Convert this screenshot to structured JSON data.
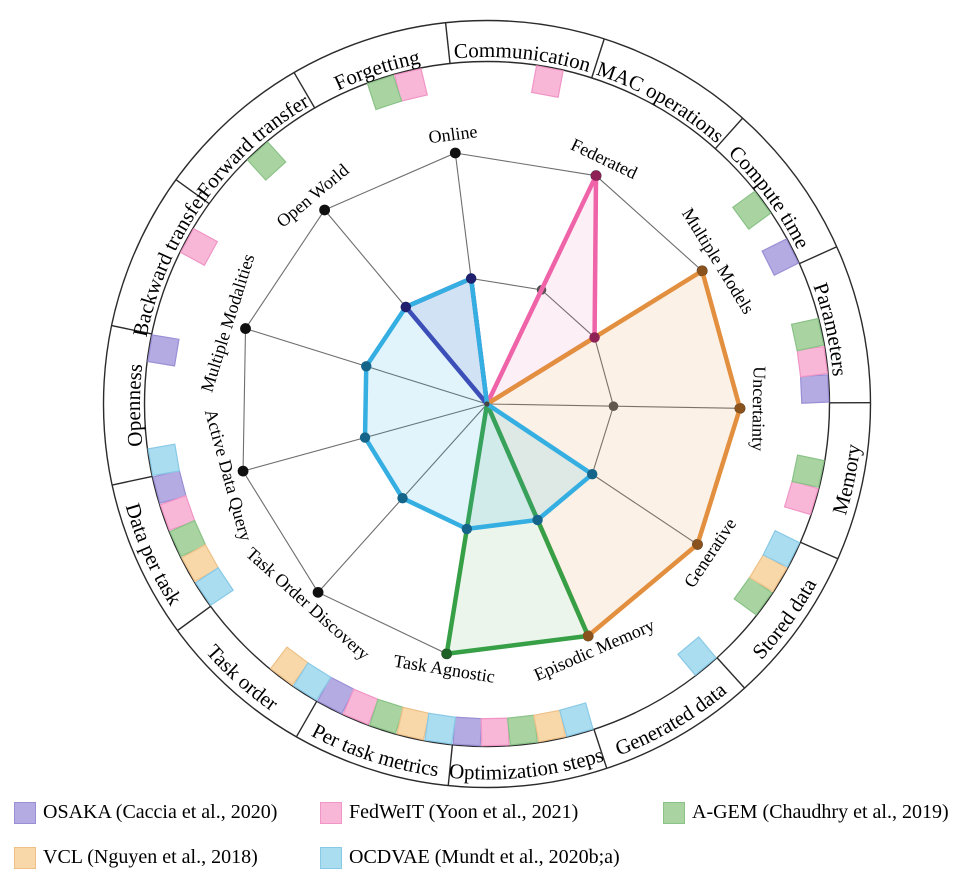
{
  "methods": {
    "OSAKA": {
      "line": "#3e3eb0",
      "dot": "#20206e",
      "square_fill": "#b4abe2",
      "square_stroke": "#998fd5",
      "fill_opacity": 0.1
    },
    "FedWeIT": {
      "line": "#ef63a8",
      "dot": "#8e2156",
      "square_fill": "#f9b7d8",
      "square_stroke": "#f095c5",
      "fill_opacity": 0.1
    },
    "A-GEM": {
      "line": "#37a046",
      "dot": "#1e6127",
      "square_fill": "#a9d4a2",
      "square_stroke": "#8ac287",
      "fill_opacity": 0.1
    },
    "VCL": {
      "line": "#e28f3f",
      "dot": "#8a521c",
      "square_fill": "#f8d8a9",
      "square_stroke": "#eec088",
      "fill_opacity": 0.13
    },
    "OCDVAE": {
      "line": "#35aee2",
      "dot": "#15658a",
      "square_fill": "#abddf1",
      "square_stroke": "#88c9e6",
      "fill_opacity": 0.14
    }
  },
  "chart_data": {
    "type": "radar",
    "title": "",
    "value_levels": [
      0,
      1,
      2
    ],
    "axes": [
      "Online",
      "Federated",
      "Multiple Models",
      "Uncertainty",
      "Generative",
      "Episodic Memory",
      "Task Agnostic",
      "Task Order Discovery",
      "Active Data Query",
      "Multiple Modalities",
      "Open World"
    ],
    "series": [
      {
        "name": "OSAKA",
        "values": [
          1,
          0,
          0,
          0,
          0,
          0,
          0,
          0,
          0,
          0,
          1
        ]
      },
      {
        "name": "FedWeIT",
        "values": [
          0,
          2,
          1,
          0,
          0,
          0,
          0,
          0,
          0,
          0,
          0
        ]
      },
      {
        "name": "VCL",
        "values": [
          0,
          0,
          2,
          2,
          2,
          2,
          0,
          0,
          0,
          0,
          0
        ]
      },
      {
        "name": "A-GEM",
        "values": [
          0,
          0,
          0,
          0,
          0,
          2,
          2,
          0,
          0,
          0,
          0
        ]
      },
      {
        "name": "OCDVAE",
        "values": [
          1,
          0,
          0,
          0,
          1,
          1,
          1,
          1,
          1,
          1,
          1
        ]
      }
    ],
    "outer_ring_sectors": [
      {
        "label": "Communication",
        "flipped": false,
        "marks": [
          "FedWeIT"
        ]
      },
      {
        "label": "MAC operations",
        "flipped": false,
        "marks": []
      },
      {
        "label": "Compute time",
        "flipped": false,
        "marks": [
          "OSAKA",
          "A-GEM"
        ]
      },
      {
        "label": "Parameters",
        "flipped": false,
        "marks": [
          "OSAKA",
          "FedWeIT",
          "A-GEM"
        ]
      },
      {
        "label": "Memory",
        "flipped": true,
        "marks": [
          "FedWeIT",
          "A-GEM"
        ]
      },
      {
        "label": "Stored data",
        "flipped": true,
        "marks": [
          "A-GEM",
          "VCL",
          "OCDVAE"
        ]
      },
      {
        "label": "Generated data",
        "flipped": true,
        "marks": [
          "OCDVAE"
        ]
      },
      {
        "label": "Optimization steps",
        "flipped": true,
        "marks": [
          "OSAKA",
          "FedWeIT",
          "A-GEM",
          "VCL",
          "OCDVAE"
        ]
      },
      {
        "label": "Per task metrics",
        "flipped": true,
        "marks": [
          "OSAKA",
          "FedWeIT",
          "A-GEM",
          "VCL",
          "OCDVAE"
        ]
      },
      {
        "label": "Task order",
        "flipped": true,
        "marks": [
          "VCL",
          "OCDVAE"
        ]
      },
      {
        "label": "Data per task",
        "flipped": true,
        "marks": [
          "OSAKA",
          "FedWeIT",
          "A-GEM",
          "VCL",
          "OCDVAE"
        ]
      },
      {
        "label": "Openness",
        "flipped": false,
        "marks": [
          "OSAKA",
          "OCDVAE"
        ]
      },
      {
        "label": "Backward transfer",
        "flipped": false,
        "marks": [
          "FedWeIT"
        ]
      },
      {
        "label": "Forward transfer",
        "flipped": false,
        "marks": [
          "A-GEM"
        ]
      },
      {
        "label": "Forgetting",
        "flipped": false,
        "marks": [
          "FedWeIT",
          "A-GEM"
        ]
      }
    ]
  },
  "legend": {
    "items": [
      {
        "method": "OSAKA",
        "label": "OSAKA (Caccia et al., 2020)"
      },
      {
        "method": "FedWeIT",
        "label": "FedWeIT (Yoon et al., 2021)"
      },
      {
        "method": "A-GEM",
        "label": "A-GEM (Chaudhry et al., 2019)"
      },
      {
        "method": "VCL",
        "label": "VCL (Nguyen et al., 2018)"
      },
      {
        "method": "OCDVAE",
        "label": "OCDVAE (Mundt et al., 2020b;a)"
      }
    ]
  }
}
